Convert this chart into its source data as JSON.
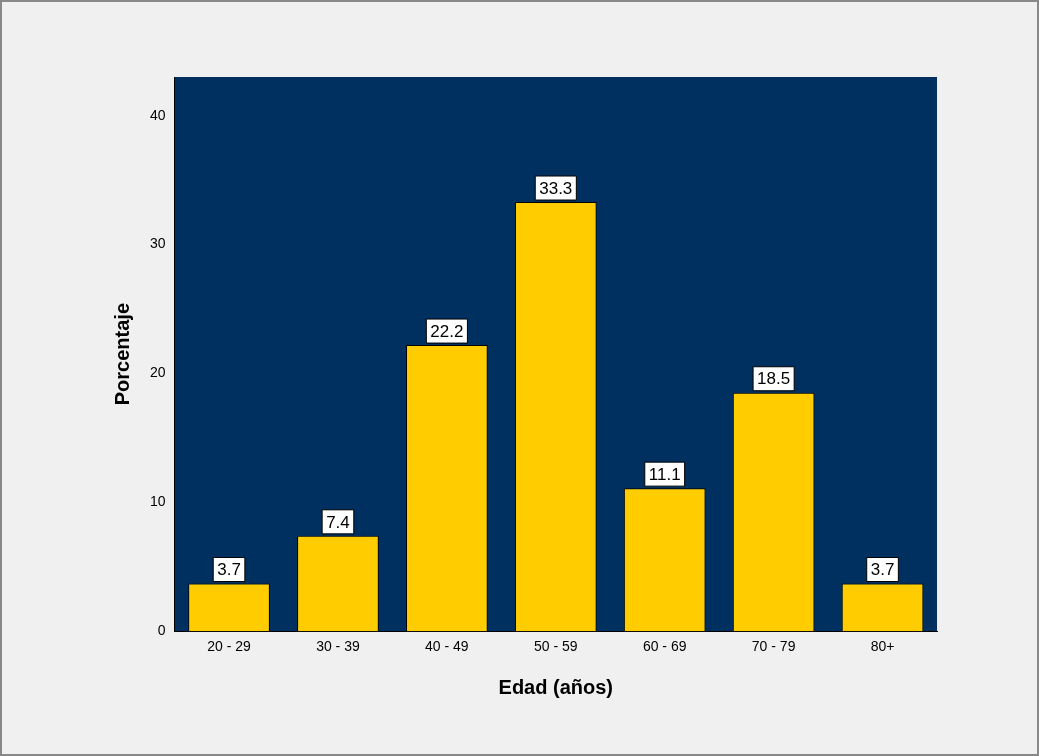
{
  "chart_data": {
    "type": "bar",
    "xlabel": "Edad (años)",
    "ylabel": "Porcentaje",
    "categories": [
      "20 - 29",
      "30 - 39",
      "40 - 49",
      "50 - 59",
      "60 - 69",
      "70 - 79",
      "80+"
    ],
    "values": [
      3.7,
      7.4,
      22.2,
      33.3,
      11.1,
      18.5,
      3.7
    ],
    "color": "#ffcc00",
    "ylim": [
      0,
      43
    ],
    "yticks": [
      0,
      10,
      20,
      30,
      40
    ],
    "grid": false,
    "legend": false,
    "data_labels": true
  }
}
